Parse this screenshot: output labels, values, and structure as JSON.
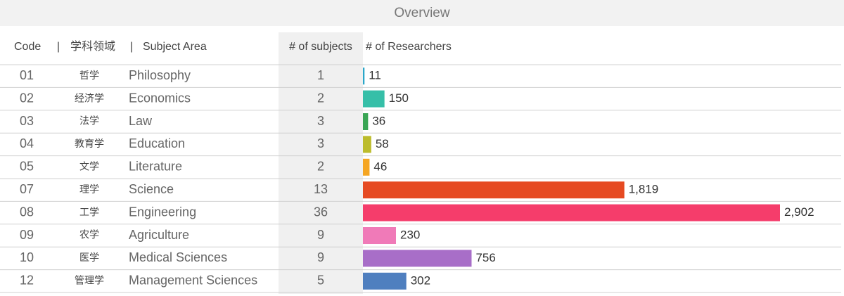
{
  "title": "Overview",
  "headers": [
    "Code",
    "|",
    "学科领域",
    "|",
    "Subject Area",
    "# of subjects",
    "# of Researchers"
  ],
  "rows": [
    {
      "code": "01",
      "zh": "哲学",
      "area": "Philosophy",
      "subjects": 1,
      "researchers": 11,
      "researchers_label": "11",
      "color": "#2aa7c9"
    },
    {
      "code": "02",
      "zh": "经济学",
      "area": "Economics",
      "subjects": 2,
      "researchers": 150,
      "researchers_label": "150",
      "color": "#36bfa8"
    },
    {
      "code": "03",
      "zh": "法学",
      "area": "Law",
      "subjects": 3,
      "researchers": 36,
      "researchers_label": "36",
      "color": "#3aa655"
    },
    {
      "code": "04",
      "zh": "教育学",
      "area": "Education",
      "subjects": 3,
      "researchers": 58,
      "researchers_label": "58",
      "color": "#bcbc2c"
    },
    {
      "code": "05",
      "zh": "文学",
      "area": "Literature",
      "subjects": 2,
      "researchers": 46,
      "researchers_label": "46",
      "color": "#f5a623"
    },
    {
      "code": "07",
      "zh": "理学",
      "area": "Science",
      "subjects": 13,
      "researchers": 1819,
      "researchers_label": "1,819",
      "color": "#e64a22"
    },
    {
      "code": "08",
      "zh": "工学",
      "area": "Engineering",
      "subjects": 36,
      "researchers": 2902,
      "researchers_label": "2,902",
      "color": "#f53d6b"
    },
    {
      "code": "09",
      "zh": "农学",
      "area": "Agriculture",
      "subjects": 9,
      "researchers": 230,
      "researchers_label": "230",
      "color": "#f07ab8"
    },
    {
      "code": "10",
      "zh": "医学",
      "area": "Medical Sciences",
      "subjects": 9,
      "researchers": 756,
      "researchers_label": "756",
      "color": "#a86ec8"
    },
    {
      "code": "12",
      "zh": "管理学",
      "area": "Management Sciences",
      "subjects": 5,
      "researchers": 302,
      "researchers_label": "302",
      "color": "#4f7fbf"
    }
  ]
}
